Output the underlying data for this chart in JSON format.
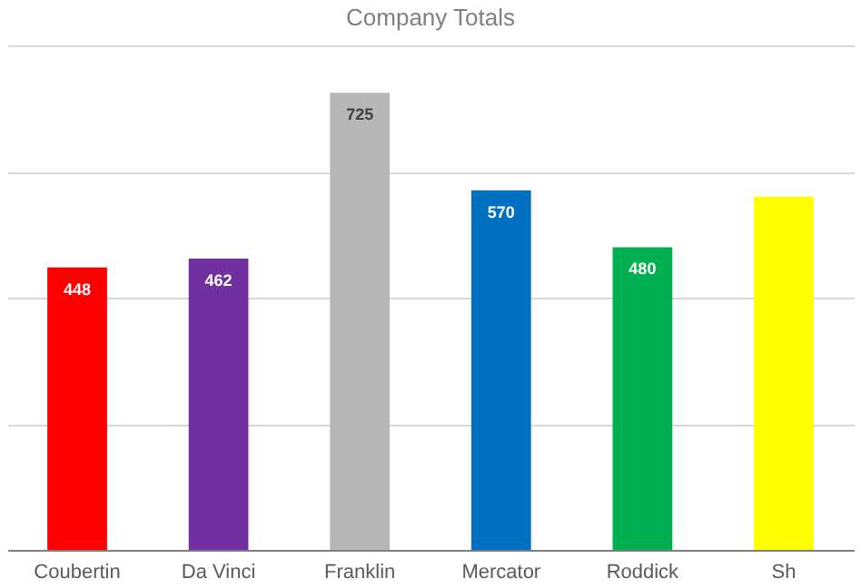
{
  "chart_data": {
    "type": "bar",
    "title": "Company Totals",
    "categories": [
      "Coubertin",
      "Da Vinci",
      "Franklin",
      "Mercator",
      "Roddick",
      "Sh"
    ],
    "values": [
      448,
      462,
      725,
      570,
      480,
      560
    ],
    "colors": [
      "#ff0000",
      "#7030a0",
      "#b7b7b7",
      "#0070c0",
      "#00b050",
      "#ffff00"
    ],
    "value_labels": [
      "448",
      "462",
      "725",
      "570",
      "480",
      null
    ],
    "ylim": [
      0,
      800
    ],
    "yticks": [
      {
        "value": 0,
        "label": null
      },
      {
        "value": 200,
        "label": null
      },
      {
        "value": 400,
        "label": null
      },
      {
        "value": 600,
        "label": null
      },
      {
        "value": 800,
        "label": null
      }
    ],
    "grid": "y",
    "tick_labels": "x"
  }
}
